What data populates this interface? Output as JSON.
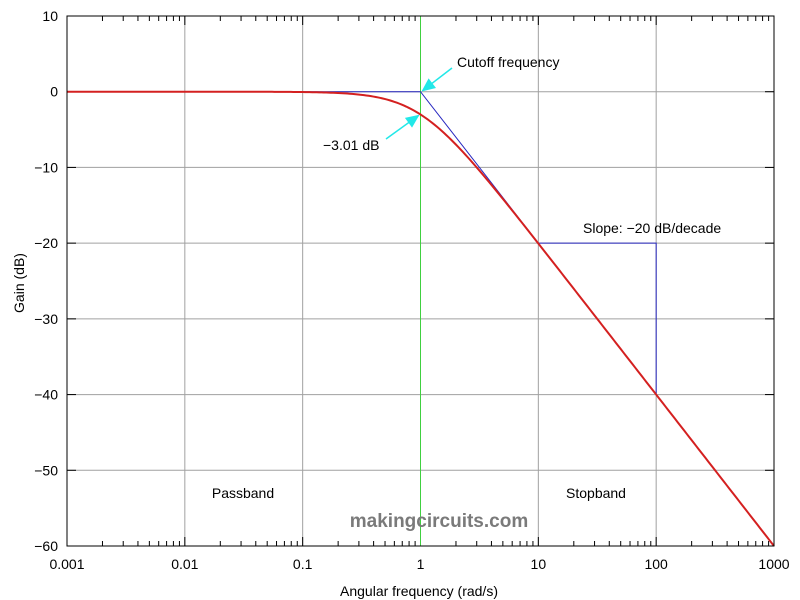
{
  "chart_data": {
    "type": "line",
    "title": "",
    "xlabel": "Angular frequency (rad/s)",
    "ylabel": "Gain (dB)",
    "xscale": "log",
    "xlim": [
      0.001,
      1000
    ],
    "ylim": [
      -60,
      10
    ],
    "grid": true,
    "x_ticks": [
      0.001,
      0.01,
      0.1,
      1,
      10,
      100,
      1000
    ],
    "x_tick_labels": [
      "0.001",
      "0.01",
      "0.1",
      "1",
      "10",
      "100",
      "1000"
    ],
    "y_ticks": [
      10,
      0,
      -10,
      -20,
      -30,
      -40,
      -50,
      -60
    ],
    "y_tick_labels": [
      "10",
      "0",
      "−10",
      "−20",
      "−30",
      "−40",
      "−50",
      "−60"
    ],
    "series": [
      {
        "color": "#d42020",
        "x": [
          0.001,
          0.01,
          0.1,
          0.2,
          0.3,
          0.5,
          0.7,
          1,
          1.5,
          2,
          3,
          5,
          7,
          10,
          20,
          50,
          100,
          200,
          500,
          1000
        ],
        "y": [
          0,
          0,
          -0.04,
          -0.17,
          -0.37,
          -0.97,
          -1.73,
          -3.01,
          -5.12,
          -6.99,
          -10.0,
          -14.15,
          -17.0,
          -20.04,
          -26.03,
          -33.98,
          -40.0,
          -46.02,
          -53.98,
          -60.0
        ]
      }
    ],
    "asymptote": {
      "color": "#2727c0",
      "x": [
        0.001,
        1,
        1000
      ],
      "y": [
        0,
        0,
        -60
      ]
    },
    "slope_triangle": {
      "color": "#2727c0",
      "x": [
        10,
        100,
        100
      ],
      "y": [
        -20,
        -20,
        -40
      ]
    },
    "cutoff_line": {
      "color": "#40d040",
      "x": 1
    },
    "annotations": [
      {
        "text": "Cutoff frequency",
        "arrow_to": [
          1,
          0
        ]
      },
      {
        "text": "−3.01 dB",
        "arrow_to": [
          1,
          -3.01
        ]
      },
      {
        "text": "Slope: −20 dB/decade"
      }
    ],
    "regions": [
      "Passband",
      "Stopband"
    ],
    "watermark": "makingcircuits.com",
    "arrow_color": "#22e8e8"
  }
}
